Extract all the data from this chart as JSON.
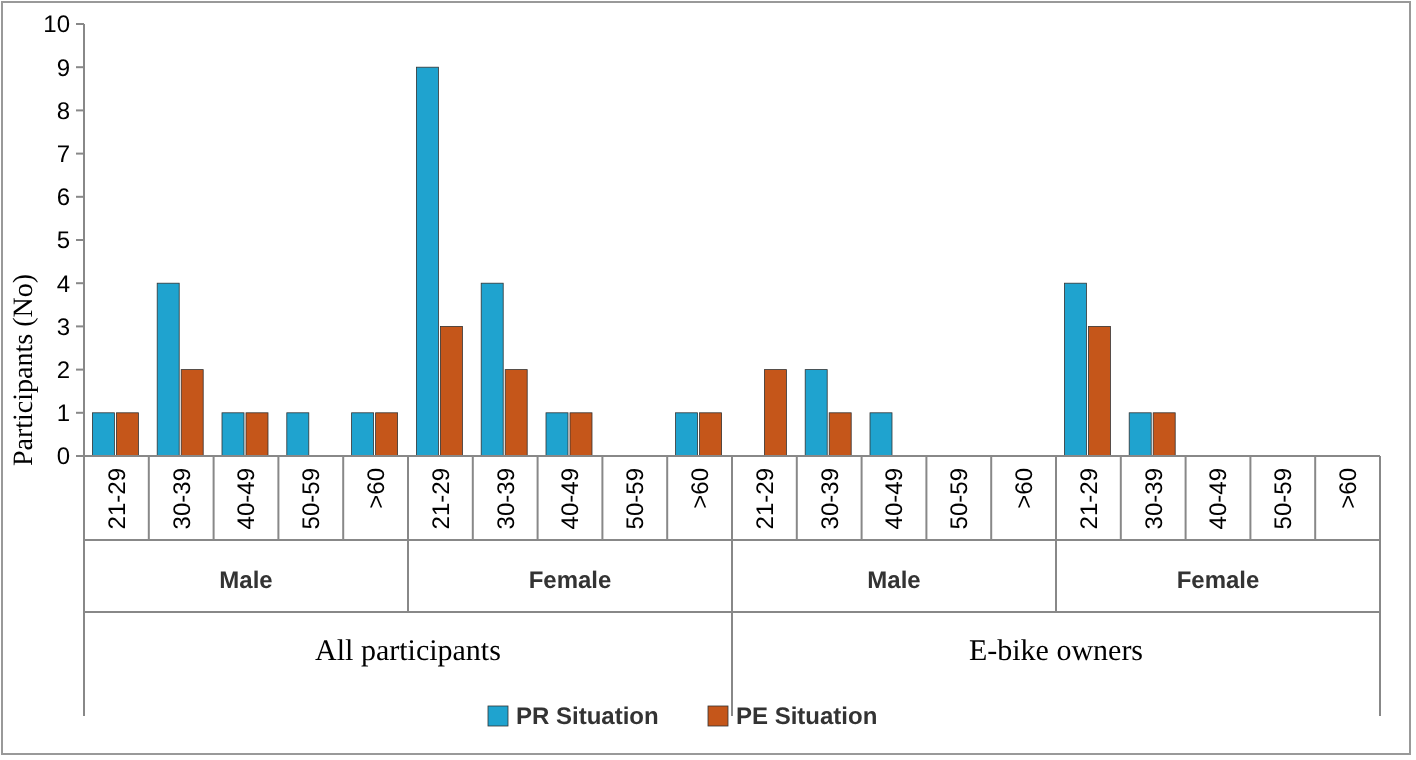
{
  "chart_data": {
    "type": "bar",
    "ylabel": "Participants (No)",
    "categories": [
      "21-29",
      "30-39",
      "40-49",
      "50-59",
      ">60",
      "21-29",
      "30-39",
      "40-49",
      "50-59",
      ">60",
      "21-29",
      "30-39",
      "40-49",
      "50-59",
      ">60",
      "21-29",
      "30-39",
      "40-49",
      "50-59",
      ">60"
    ],
    "series": [
      {
        "name": "PR Situation",
        "color": "#1fa3cf",
        "values": [
          1,
          4,
          1,
          1,
          1,
          9,
          4,
          1,
          0,
          1,
          0,
          2,
          1,
          0,
          0,
          4,
          1,
          0,
          0,
          0
        ]
      },
      {
        "name": "PE Situation",
        "color": "#c5561a",
        "values": [
          1,
          2,
          1,
          0,
          1,
          3,
          2,
          1,
          0,
          1,
          2,
          1,
          0,
          0,
          0,
          3,
          1,
          0,
          0,
          0
        ]
      }
    ],
    "annotations": [
      "Male",
      "Female",
      "Male",
      "Female",
      "All participants",
      "E-bike owners"
    ],
    "ylim": [
      0,
      10
    ],
    "yticks": [
      0,
      1,
      2,
      3,
      4,
      5,
      6,
      7,
      8,
      9,
      10
    ],
    "grid": false,
    "legend": "bottom"
  }
}
